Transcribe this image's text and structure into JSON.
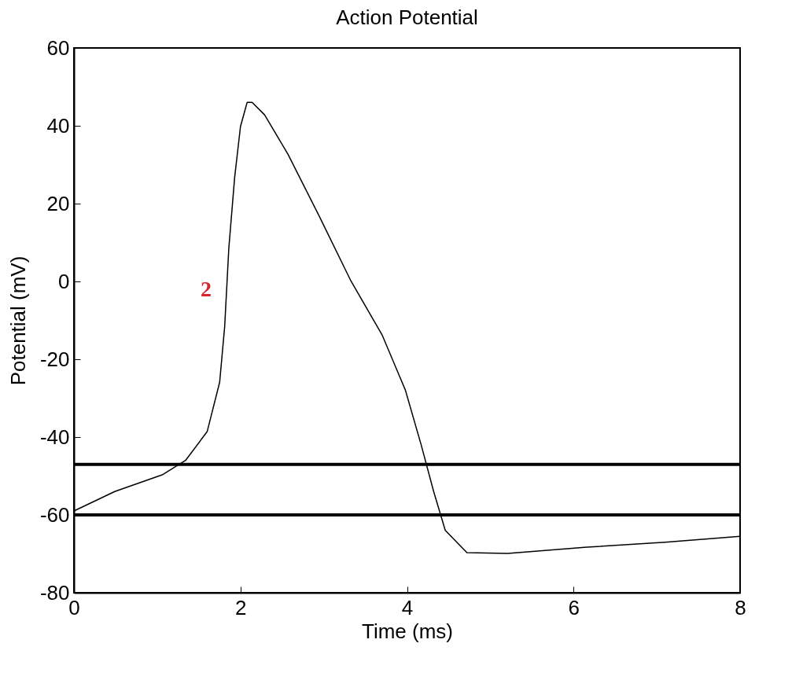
{
  "chart_data": {
    "type": "line",
    "title": "Action Potential",
    "xlabel": "Time (ms)",
    "ylabel": "Potential (mV)",
    "x": [
      0,
      0.49,
      1.06,
      1.34,
      1.6,
      1.75,
      1.81,
      1.86,
      1.93,
      2.0,
      2.08,
      2.14,
      2.29,
      2.57,
      2.95,
      3.32,
      3.7,
      3.98,
      4.17,
      4.32,
      4.46,
      4.72,
      5.21,
      6.16,
      7.1,
      8
    ],
    "series": [
      {
        "color": "#000000",
        "values": [
          -59,
          -54,
          -49.7,
          -46,
          -38.6,
          -25.9,
          -11.7,
          8.5,
          26.7,
          39.8,
          46,
          46,
          42.8,
          32.7,
          16.6,
          0.4,
          -13.7,
          -27.9,
          -42,
          -54,
          -64,
          -69.7,
          -69.9,
          -68.3,
          -67,
          -65.5
        ]
      }
    ],
    "xlim": [
      0,
      8
    ],
    "xticks": [
      0,
      2,
      4,
      6,
      8
    ],
    "ylim": [
      -80,
      60
    ],
    "yticks": [
      -80,
      -60,
      -40,
      -20,
      0,
      20,
      40,
      60
    ],
    "grid": false,
    "marker": "none",
    "line_style": "solid",
    "ref_lines": [
      {
        "axis": "y",
        "value": -47,
        "color": "#000000"
      },
      {
        "axis": "y",
        "value": -60,
        "color": "#000000"
      }
    ],
    "annotations": [
      "2"
    ]
  }
}
